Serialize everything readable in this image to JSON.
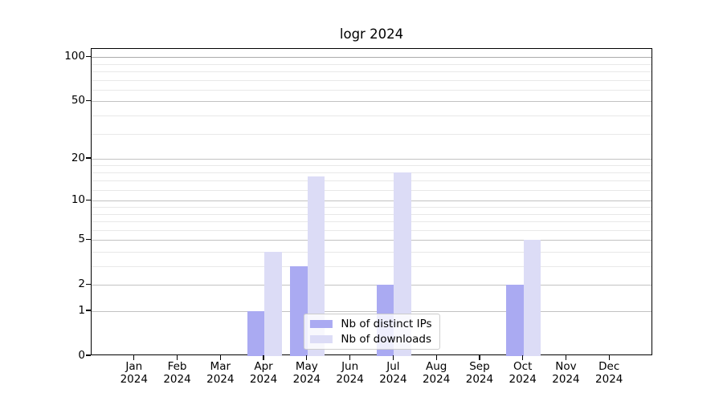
{
  "chart_data": {
    "type": "bar",
    "title": "logr 2024",
    "categories": [
      "Jan",
      "Feb",
      "Mar",
      "Apr",
      "May",
      "Jun",
      "Jul",
      "Aug",
      "Sep",
      "Oct",
      "Nov",
      "Dec"
    ],
    "x_tick_year_line": "2024",
    "series": [
      {
        "name": "Nb of distinct IPs",
        "color": "#aaaaf2",
        "values": [
          0,
          0,
          0,
          1,
          3,
          0,
          2,
          0,
          0,
          2,
          0,
          0
        ]
      },
      {
        "name": "Nb of downloads",
        "color": "#dcdcf6",
        "values": [
          0,
          0,
          0,
          4,
          15,
          0,
          16,
          0,
          0,
          5,
          0,
          0
        ]
      }
    ],
    "y_axis": {
      "scale": "log1p",
      "major_ticks": [
        0,
        1,
        2,
        5,
        10,
        20,
        50,
        100
      ],
      "minor_gridlines": [
        3,
        4,
        6,
        7,
        8,
        9,
        12,
        14,
        16,
        18,
        30,
        40,
        60,
        70,
        80,
        90
      ],
      "top_value": 113
    },
    "legend_position": "lower center",
    "grid": true
  },
  "colors": {
    "grid_major": "#c2c2c2",
    "grid_minor": "#e8e8e8",
    "spine": "#000000",
    "background": "#ffffff",
    "legend_border": "#cccccc"
  }
}
